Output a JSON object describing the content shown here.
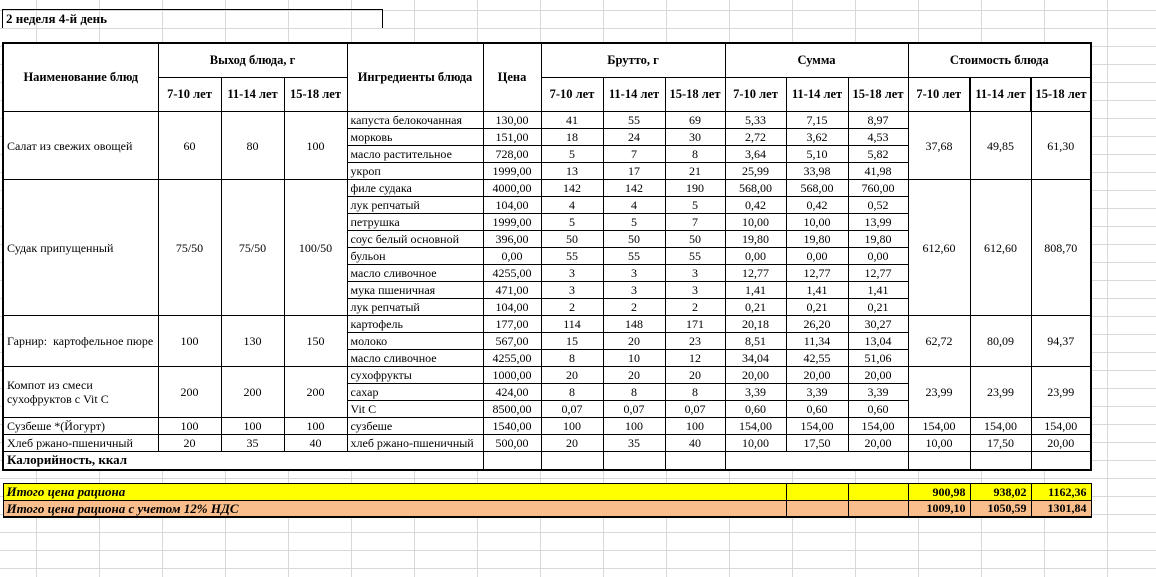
{
  "title": "2 неделя 4-й день",
  "header": {
    "dish_name": "Наименование блюд",
    "output": "Выход блюда, г",
    "ingredients": "Ингредиенты блюда",
    "price": "Цена",
    "gross": "Брутто, г",
    "sum": "Сумма",
    "dish_cost": "Стоимость блюда",
    "age_groups": [
      "7-10 лет",
      "11-14 лет",
      "15-18 лет"
    ]
  },
  "dishes": [
    {
      "name": "Салат из свежих овощей",
      "output": [
        "60",
        "80",
        "100"
      ],
      "cost": [
        "37,68",
        "49,85",
        "61,30"
      ],
      "ingredients": [
        {
          "name": "капуста белокочанная",
          "price": "130,00",
          "gross": [
            "41",
            "55",
            "69"
          ],
          "sum": [
            "5,33",
            "7,15",
            "8,97"
          ]
        },
        {
          "name": "морковь",
          "price": "151,00",
          "gross": [
            "18",
            "24",
            "30"
          ],
          "sum": [
            "2,72",
            "3,62",
            "4,53"
          ]
        },
        {
          "name": "масло растительное",
          "price": "728,00",
          "gross": [
            "5",
            "7",
            "8"
          ],
          "sum": [
            "3,64",
            "5,10",
            "5,82"
          ]
        },
        {
          "name": "укроп",
          "price": "1999,00",
          "gross": [
            "13",
            "17",
            "21"
          ],
          "sum": [
            "25,99",
            "33,98",
            "41,98"
          ]
        }
      ]
    },
    {
      "name": "Судак припущенный",
      "output": [
        "75/50",
        "75/50",
        "100/50"
      ],
      "cost": [
        "612,60",
        "612,60",
        "808,70"
      ],
      "ingredients": [
        {
          "name": "филе судака",
          "price": "4000,00",
          "gross": [
            "142",
            "142",
            "190"
          ],
          "sum": [
            "568,00",
            "568,00",
            "760,00"
          ]
        },
        {
          "name": "лук репчатый",
          "price": "104,00",
          "gross": [
            "4",
            "4",
            "5"
          ],
          "sum": [
            "0,42",
            "0,42",
            "0,52"
          ]
        },
        {
          "name": "петрушка",
          "price": "1999,00",
          "gross": [
            "5",
            "5",
            "7"
          ],
          "sum": [
            "10,00",
            "10,00",
            "13,99"
          ]
        },
        {
          "name": "соус белый основной",
          "price": "396,00",
          "gross": [
            "50",
            "50",
            "50"
          ],
          "sum": [
            "19,80",
            "19,80",
            "19,80"
          ]
        },
        {
          "name": "бульон",
          "price": "0,00",
          "gross": [
            "55",
            "55",
            "55"
          ],
          "sum": [
            "0,00",
            "0,00",
            "0,00"
          ]
        },
        {
          "name": "масло сливочное",
          "price": "4255,00",
          "gross": [
            "3",
            "3",
            "3"
          ],
          "sum": [
            "12,77",
            "12,77",
            "12,77"
          ]
        },
        {
          "name": "мука пшеничная",
          "price": "471,00",
          "gross": [
            "3",
            "3",
            "3"
          ],
          "sum": [
            "1,41",
            "1,41",
            "1,41"
          ]
        },
        {
          "name": "лук репчатый",
          "price": "104,00",
          "gross": [
            "2",
            "2",
            "2"
          ],
          "sum": [
            "0,21",
            "0,21",
            "0,21"
          ]
        }
      ]
    },
    {
      "name": "Гарнир:  картофельное пюре",
      "output": [
        "100",
        "130",
        "150"
      ],
      "cost": [
        "62,72",
        "80,09",
        "94,37"
      ],
      "ingredients": [
        {
          "name": "картофель",
          "price": "177,00",
          "gross": [
            "114",
            "148",
            "171"
          ],
          "sum": [
            "20,18",
            "26,20",
            "30,27"
          ]
        },
        {
          "name": "молоко",
          "price": "567,00",
          "gross": [
            "15",
            "20",
            "23"
          ],
          "sum": [
            "8,51",
            "11,34",
            "13,04"
          ]
        },
        {
          "name": "масло сливочное",
          "price": "4255,00",
          "gross": [
            "8",
            "10",
            "12"
          ],
          "sum": [
            "34,04",
            "42,55",
            "51,06"
          ]
        }
      ]
    },
    {
      "name": "Компот из смеси сухофруктов с Vit C",
      "output": [
        "200",
        "200",
        "200"
      ],
      "cost": [
        "23,99",
        "23,99",
        "23,99"
      ],
      "ingredients": [
        {
          "name": "сухофрукты",
          "price": "1000,00",
          "gross": [
            "20",
            "20",
            "20"
          ],
          "sum": [
            "20,00",
            "20,00",
            "20,00"
          ]
        },
        {
          "name": "сахар",
          "price": "424,00",
          "gross": [
            "8",
            "8",
            "8"
          ],
          "sum": [
            "3,39",
            "3,39",
            "3,39"
          ]
        },
        {
          "name": "Vit C",
          "price": "8500,00",
          "gross": [
            "0,07",
            "0,07",
            "0,07"
          ],
          "sum": [
            "0,60",
            "0,60",
            "0,60"
          ]
        }
      ]
    },
    {
      "name": "Сузбеше *(Йогурт)",
      "output": [
        "100",
        "100",
        "100"
      ],
      "cost": [
        "154,00",
        "154,00",
        "154,00"
      ],
      "ingredients": [
        {
          "name": "сузбеше",
          "price": "1540,00",
          "gross": [
            "100",
            "100",
            "100"
          ],
          "sum": [
            "154,00",
            "154,00",
            "154,00"
          ]
        }
      ]
    },
    {
      "name": "Хлеб ржано-пшеничный",
      "output": [
        "20",
        "35",
        "40"
      ],
      "cost": [
        "10,00",
        "17,50",
        "20,00"
      ],
      "ingredients": [
        {
          "name": "хлеб ржано-пшеничный",
          "price": "500,00",
          "gross": [
            "20",
            "35",
            "40"
          ],
          "sum": [
            "10,00",
            "17,50",
            "20,00"
          ]
        }
      ]
    }
  ],
  "calories_label": "Калорийность, ккал",
  "totals": [
    {
      "label": "Итого цена рациона",
      "values": [
        "900,98",
        "938,02",
        "1162,36"
      ],
      "bg": "#FFFF00"
    },
    {
      "label": "Итого цена рациона с учетом 12% НДС",
      "values": [
        "1009,10",
        "1050,59",
        "1301,84"
      ],
      "bg": "#F9BE8C"
    }
  ],
  "colors": {
    "border": "#000000",
    "gridline": "#d9d9d9",
    "total_row_1_bg": "#FFFF00",
    "total_row_2_bg": "#F9BE8C"
  }
}
